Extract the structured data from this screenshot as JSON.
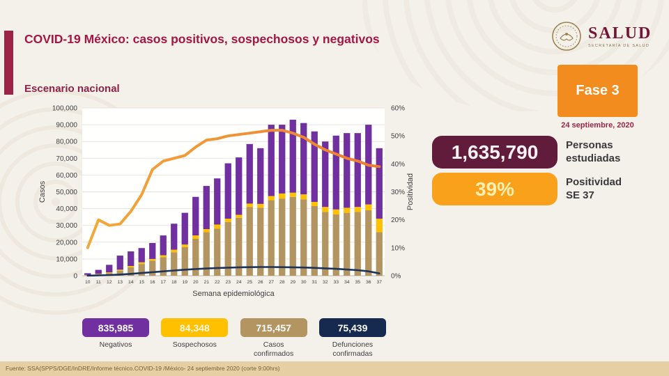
{
  "header": {
    "title": "COVID-19 México: casos positivos, sospechosos y negativos",
    "logo_wordmark": "SALUD",
    "logo_tagline": "SECRETARÍA DE SALUD"
  },
  "section_title": "Escenario nacional",
  "phase": {
    "label": "Fase 3",
    "date": "24 septiembre, 2020"
  },
  "stats": {
    "studied": {
      "value": "1,635,790",
      "label": "Personas\nestudiadas"
    },
    "positivity": {
      "value": "39%",
      "label": "Positividad\nSE 37"
    }
  },
  "legend": {
    "negativos": {
      "value": "835,985",
      "label": "Negativos"
    },
    "sospechosos": {
      "value": "84,348",
      "label": "Sospechosos"
    },
    "confirmados": {
      "value": "715,457",
      "label": "Casos\nconfirmados"
    },
    "defunciones": {
      "value": "75,439",
      "label": "Defunciones\nconfirmadas"
    }
  },
  "colors": {
    "brand_maroon": "#9D2449",
    "badge_maroon": "#611C3B",
    "phase_orange": "#F28C1E",
    "badge_orange": "#F9A11B",
    "negativos_purple": "#7030A0",
    "sospechosos_yellow": "#FFC000",
    "confirmados_tan": "#B29561",
    "defunciones_navy": "#16294F",
    "footer_band": "#E5CFA3"
  },
  "footer": {
    "source": "Fuente: SSA(SPPS/DGE/InDRE/Informe técnico.COVID-19 /México- 24 septiembre 2020 (corte 9:00hrs)"
  },
  "chart_data": {
    "type": "bar",
    "stacked": true,
    "title": "Escenario nacional",
    "xlabel": "Semana epidemiológica",
    "ylabel_left": "Casos",
    "ylabel_right": "Positividad",
    "ylim_left": [
      0,
      100000
    ],
    "ylim_right": [
      0,
      60
    ],
    "ytick_step_left": 10000,
    "ytick_step_right": 10,
    "grid": true,
    "legend_position": "bottom-badges",
    "categories": [
      "10",
      "11",
      "12",
      "13",
      "14",
      "15",
      "16",
      "17",
      "18",
      "19",
      "20",
      "21",
      "22",
      "23",
      "24",
      "25",
      "26",
      "27",
      "28",
      "29",
      "30",
      "31",
      "32",
      "33",
      "34",
      "35",
      "36",
      "37"
    ],
    "series": [
      {
        "name": "Casos confirmados",
        "type": "bar",
        "axis": "left",
        "color": "#B29561",
        "values": [
          300,
          800,
          1500,
          3000,
          5000,
          7000,
          9000,
          11000,
          14000,
          17000,
          22000,
          26000,
          28000,
          32000,
          34500,
          41000,
          40500,
          45000,
          46000,
          47000,
          45500,
          41500,
          38000,
          36500,
          37500,
          38000,
          39000,
          26000
        ]
      },
      {
        "name": "Sospechosos",
        "type": "bar",
        "axis": "left",
        "color": "#FFC000",
        "values": [
          200,
          300,
          500,
          600,
          800,
          1000,
          1000,
          1200,
          1500,
          1600,
          2000,
          1800,
          2500,
          2000,
          1800,
          2000,
          2300,
          2500,
          3000,
          2500,
          3000,
          2500,
          3000,
          3000,
          3000,
          3000,
          3500,
          8000
        ]
      },
      {
        "name": "Negativos",
        "type": "bar",
        "axis": "left",
        "color": "#7030A0",
        "values": [
          1000,
          2400,
          4500,
          8400,
          8700,
          8500,
          9500,
          11800,
          15500,
          18900,
          23000,
          25700,
          27500,
          33000,
          34200,
          35500,
          33200,
          42500,
          41000,
          43500,
          42500,
          42000,
          39000,
          44000,
          44500,
          44000,
          47500,
          42000
        ]
      },
      {
        "name": "Defunciones confirmadas",
        "type": "line",
        "axis": "left",
        "color": "#1D3359",
        "values": [
          100,
          200,
          400,
          700,
          1100,
          1600,
          2100,
          2600,
          3100,
          3600,
          4000,
          4300,
          4600,
          4800,
          5000,
          5100,
          5200,
          5200,
          5100,
          5000,
          4900,
          4700,
          4400,
          4100,
          3700,
          3300,
          2600,
          1400
        ]
      },
      {
        "name": "Positividad (%)",
        "type": "line",
        "axis": "right",
        "color": "#ED7D31",
        "color_start": "#F2A93B",
        "values": [
          10,
          20,
          18,
          18.5,
          23,
          29,
          38,
          41,
          42,
          43,
          46,
          48.5,
          49,
          50,
          50.5,
          51,
          51.5,
          52,
          52,
          51,
          49.5,
          47,
          45,
          43.5,
          42,
          41,
          39.5,
          39
        ]
      }
    ]
  }
}
